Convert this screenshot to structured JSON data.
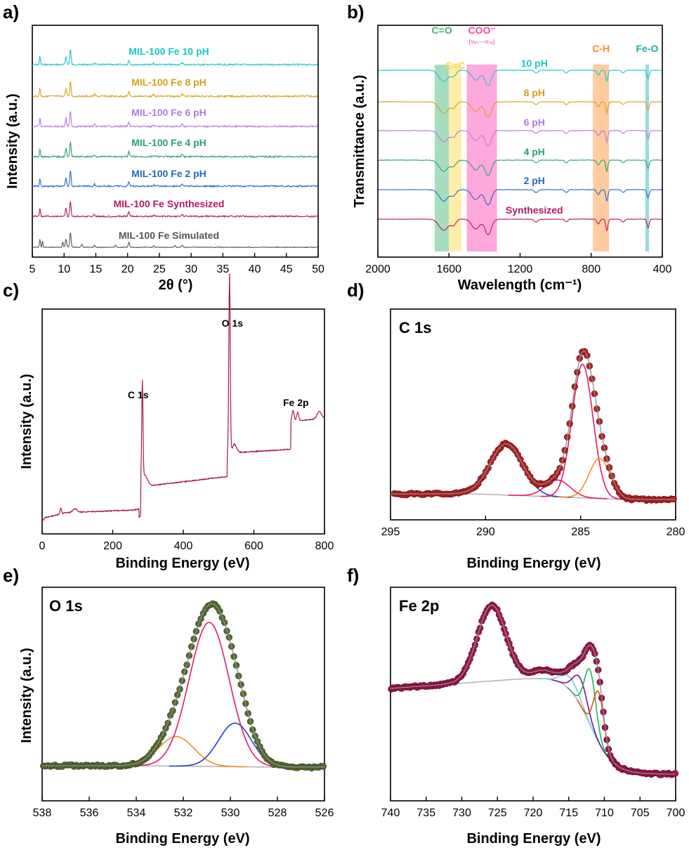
{
  "panels": {
    "a": {
      "letter": "a)"
    },
    "b": {
      "letter": "b)"
    },
    "c": {
      "letter": "c)"
    },
    "d": {
      "letter": "d)"
    },
    "e": {
      "letter": "e)"
    },
    "f": {
      "letter": "f)"
    }
  },
  "chart_data": [
    {
      "id": "a",
      "type": "line",
      "title": "",
      "xlabel": "2θ (°)",
      "ylabel": "Intensity (a.u.)",
      "xlim": [
        5,
        50
      ],
      "xticks": [
        5,
        10,
        15,
        20,
        25,
        30,
        35,
        40,
        45,
        50
      ],
      "y_ticks_shown": false,
      "series": [
        {
          "name": "MIL-100 Fe 10 pH",
          "color": "#17c6c6"
        },
        {
          "name": "MIL-100 Fe 8 pH",
          "color": "#d4a017"
        },
        {
          "name": "MIL-100 Fe 6 pH",
          "color": "#b27ad8"
        },
        {
          "name": "MIL-100 Fe 4 pH",
          "color": "#2aa170"
        },
        {
          "name": "MIL-100 Fe 2 pH",
          "color": "#2469c7"
        },
        {
          "name": "MIL-100 Fe Synthesized",
          "color": "#b3175e"
        },
        {
          "name": "MIL-100 Fe Simulated",
          "color": "#555555"
        }
      ],
      "peak_positions_2theta": [
        6.2,
        10.3,
        11.0,
        20.2
      ]
    },
    {
      "id": "b",
      "type": "line",
      "title": "",
      "xlabel": "Wavelength (cm⁻¹)",
      "ylabel": "Transmittance (a.u.)",
      "xlim": [
        2000,
        400
      ],
      "xticks": [
        2000,
        1600,
        1200,
        800,
        400
      ],
      "y_ticks_shown": false,
      "series": [
        {
          "name": "10 pH",
          "color": "#17c6c6"
        },
        {
          "name": "8 pH",
          "color": "#d4a017"
        },
        {
          "name": "6 pH",
          "color": "#b27ad8"
        },
        {
          "name": "4 pH",
          "color": "#2aa170"
        },
        {
          "name": "2 pH",
          "color": "#2469c7"
        },
        {
          "name": "Synthesized",
          "color": "#b3175e"
        }
      ],
      "bands": [
        {
          "label": "C=O",
          "from": 1680,
          "to": 1600,
          "color": "#3cb371"
        },
        {
          "label": "C=C",
          "from": 1600,
          "to": 1530,
          "color": "#ffd740"
        },
        {
          "label": "COO⁻",
          "sublabel": "(νₐₛ—νₛₐ)",
          "from": 1500,
          "to": 1330,
          "color": "#ff3fb4"
        },
        {
          "label": "C-H",
          "from": 790,
          "to": 700,
          "color": "#ff8c2a"
        },
        {
          "label": "Fe-O",
          "from": 495,
          "to": 475,
          "color": "#1ab3a6"
        }
      ]
    },
    {
      "id": "c",
      "type": "line",
      "title": "",
      "xlabel": "Binding Energy (eV)",
      "ylabel": "Intensity (a.u.)",
      "xlim": [
        0,
        800
      ],
      "xticks": [
        0,
        200,
        400,
        600,
        800
      ],
      "y_ticks_shown": false,
      "color": "#a21d45",
      "annotations": [
        {
          "text": "C 1s",
          "x": 284
        },
        {
          "text": "O 1s",
          "x": 531
        },
        {
          "text": "Fe 2p",
          "x": 711
        }
      ]
    },
    {
      "id": "d",
      "type": "scatter",
      "title": "C 1s",
      "xlabel": "Binding Energy (eV)",
      "ylabel": "",
      "xlim": [
        295,
        280
      ],
      "xticks": [
        295,
        290,
        285,
        280
      ],
      "y_ticks_shown": false,
      "marker_color": "#b22222",
      "components": [
        {
          "center": 288.9,
          "color": "#1f3cc8"
        },
        {
          "center": 286.2,
          "color": "#e6176e"
        },
        {
          "center": 284.9,
          "color": "#e6176e"
        },
        {
          "center": 284.0,
          "color": "#ff8c1a"
        }
      ]
    },
    {
      "id": "e",
      "type": "scatter",
      "title": "O 1s",
      "xlabel": "Binding Energy (eV)",
      "ylabel": "Intensity (a.u.)",
      "xlim": [
        538,
        526
      ],
      "xticks": [
        538,
        536,
        534,
        532,
        530,
        528,
        526
      ],
      "y_ticks_shown": false,
      "marker_color": "#556b2f",
      "components": [
        {
          "center": 532.3,
          "color": "#f08a24"
        },
        {
          "center": 530.9,
          "color": "#e6176e"
        },
        {
          "center": 529.8,
          "color": "#1f3cc8"
        }
      ]
    },
    {
      "id": "f",
      "type": "scatter",
      "title": "Fe 2p",
      "xlabel": "Binding Energy (eV)",
      "ylabel": "",
      "xlim": [
        740,
        700
      ],
      "xticks": [
        740,
        735,
        730,
        725,
        720,
        715,
        710,
        705,
        700
      ],
      "y_ticks_shown": false,
      "marker_color": "#a0154d",
      "components": [
        {
          "center": 714.5,
          "color": "#7ad6d6"
        },
        {
          "center": 713.4,
          "color": "#6a1b9a"
        },
        {
          "center": 712.0,
          "color": "#22b35a"
        },
        {
          "center": 710.8,
          "color": "#e65100"
        }
      ]
    }
  ]
}
